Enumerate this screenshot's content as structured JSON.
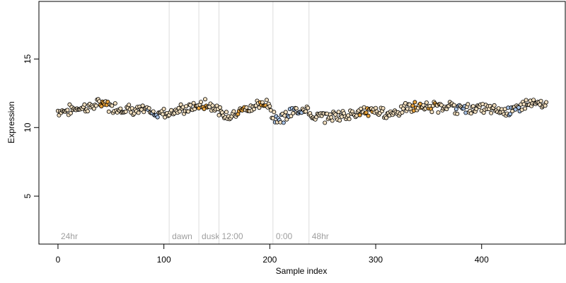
{
  "chart_data": {
    "type": "scatter",
    "xlabel": "Sample index",
    "ylabel": "Expression",
    "xlim": [
      -18,
      479
    ],
    "ylim": [
      1.5,
      19.2
    ],
    "x_ticks": [
      0,
      100,
      200,
      300,
      400
    ],
    "y_ticks": [
      5,
      10,
      15
    ],
    "grid": false,
    "regions": [
      {
        "label": "24hr",
        "x": 0
      },
      {
        "label": "dawn",
        "x": 105
      },
      {
        "label": "dusk",
        "x": 133
      },
      {
        "label": "12:00",
        "x": 152
      },
      {
        "label": "0:00",
        "x": 203
      },
      {
        "label": "48hr",
        "x": 237
      }
    ],
    "colors": {
      "default_point": "#f2dfbf",
      "orange_point": "#e8a33c",
      "blue_point": "#a9c4e8",
      "point_edge": "#000000",
      "region_line": "#dddddd",
      "region_label": "#9e9e9e"
    },
    "point_count": 462,
    "trend": [
      [
        0,
        11.2
      ],
      [
        10,
        11.25
      ],
      [
        20,
        11.45
      ],
      [
        30,
        11.5
      ],
      [
        40,
        11.75
      ],
      [
        50,
        11.5
      ],
      [
        60,
        11.4
      ],
      [
        70,
        11.3
      ],
      [
        80,
        11.2
      ],
      [
        90,
        11.05
      ],
      [
        100,
        11.1
      ],
      [
        105,
        11.1
      ],
      [
        115,
        11.3
      ],
      [
        125,
        11.4
      ],
      [
        133,
        11.6
      ],
      [
        140,
        11.7
      ],
      [
        148,
        11.6
      ],
      [
        152,
        11.1
      ],
      [
        160,
        10.8
      ],
      [
        170,
        11.2
      ],
      [
        180,
        11.5
      ],
      [
        190,
        11.6
      ],
      [
        198,
        11.7
      ],
      [
        203,
        10.9
      ],
      [
        210,
        10.65
      ],
      [
        220,
        11.0
      ],
      [
        230,
        11.4
      ],
      [
        236,
        11.55
      ],
      [
        237,
        10.8
      ],
      [
        250,
        10.75
      ],
      [
        260,
        10.85
      ],
      [
        270,
        10.95
      ],
      [
        280,
        11.05
      ],
      [
        290,
        11.15
      ],
      [
        300,
        11.2
      ],
      [
        310,
        11.0
      ],
      [
        320,
        11.2
      ],
      [
        330,
        11.4
      ],
      [
        340,
        11.5
      ],
      [
        350,
        11.5
      ],
      [
        360,
        11.5
      ],
      [
        370,
        11.6
      ],
      [
        380,
        11.3
      ],
      [
        390,
        11.4
      ],
      [
        400,
        11.4
      ],
      [
        410,
        11.3
      ],
      [
        420,
        11.2
      ],
      [
        430,
        11.25
      ],
      [
        440,
        11.7
      ],
      [
        450,
        11.7
      ],
      [
        461,
        11.6
      ]
    ],
    "orange_ranges": [
      [
        40,
        48
      ],
      [
        130,
        142
      ],
      [
        170,
        180
      ],
      [
        190,
        196
      ],
      [
        285,
        300
      ],
      [
        335,
        345
      ],
      [
        350,
        360
      ]
    ],
    "blue_ranges": [
      [
        85,
        95
      ],
      [
        205,
        230
      ],
      [
        375,
        385
      ],
      [
        425,
        436
      ]
    ]
  }
}
